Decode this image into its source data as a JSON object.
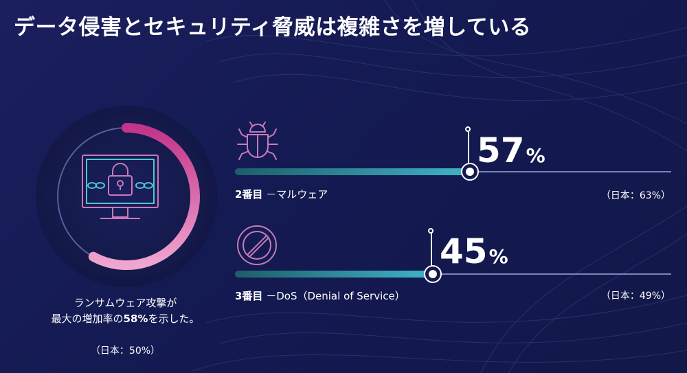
{
  "title": "データ侵害とセキュリティ脅威は複雑さを増している",
  "ransomware": {
    "line1": "ランサムウェア攻撃が",
    "line2_prefix": "最大の増加率の",
    "percent": "58%",
    "line2_suffix": "を示した。",
    "japan_note": "（日本：50%）",
    "value": 58,
    "icon": "monitor-lock-icon"
  },
  "threats": [
    {
      "rank": "2番目",
      "separator": "－",
      "name": "マルウェア",
      "value": 57,
      "value_text": "57",
      "unit": "%",
      "japan_note": "（日本：63%）",
      "icon": "bug-icon"
    },
    {
      "rank": "3番目",
      "separator": "－",
      "name": "DoS（Denial of Service）",
      "value": 45,
      "value_text": "45",
      "unit": "%",
      "japan_note": "（日本：49%）",
      "icon": "prohibited-icon"
    }
  ],
  "colors": {
    "background": "#161b52",
    "ring_start": "#c2348a",
    "ring_end": "#f0a6d0",
    "bar_start": "#1d5e6a",
    "bar_end": "#3fb4c7",
    "icon_outline": "#c67bb8",
    "icon_screen": "#4fc6d6"
  }
}
